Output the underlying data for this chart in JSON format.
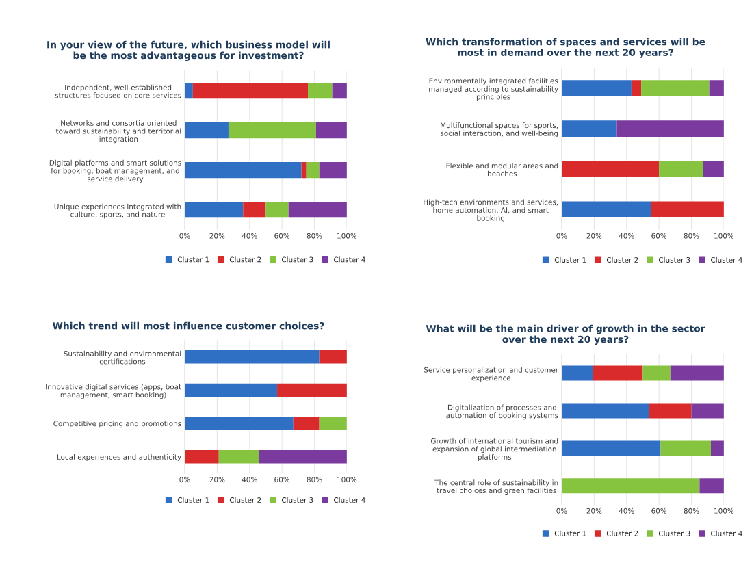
{
  "chart_data": [
    {
      "type": "bar",
      "orientation": "horizontal",
      "stacked": true,
      "title": "In your view of the future, which business model will\nbe the most advantageous for investment?",
      "categories": [
        "Independent, well-established\nstructures focused on core services",
        "Networks and consortia oriented\ntoward sustainability and territorial\nintegration",
        "Digital platforms and smart solutions\nfor booking, boat management, and\nservice delivery",
        "Unique experiences integrated with\nculture, sports, and nature"
      ],
      "series": [
        {
          "name": "Cluster 1",
          "color": "#2f6fc4",
          "values": [
            5,
            27,
            72,
            36
          ]
        },
        {
          "name": "Cluster 2",
          "color": "#d92b2b",
          "values": [
            71,
            0,
            3,
            14
          ]
        },
        {
          "name": "Cluster 3",
          "color": "#86c440",
          "values": [
            15,
            54,
            8,
            14
          ]
        },
        {
          "name": "Cluster 4",
          "color": "#7a3a9e",
          "values": [
            9,
            19,
            17,
            36
          ]
        }
      ],
      "xlim": [
        0,
        100
      ],
      "xticks": [
        {
          "value": 0,
          "label": "0%"
        },
        {
          "value": 20,
          "label": "20%"
        },
        {
          "value": 40,
          "label": "40%"
        },
        {
          "value": 60,
          "label": "60%"
        },
        {
          "value": 80,
          "label": "80%"
        },
        {
          "value": 100,
          "label": "100%"
        }
      ],
      "grid": "x",
      "legend": "bottom"
    },
    {
      "type": "bar",
      "orientation": "horizontal",
      "stacked": true,
      "title": "Which transformation of spaces and services will be\nmost in demand over the next 20 years?",
      "categories": [
        "Environmentally integrated facilities\nmanaged according to sustainability\nprinciples",
        "Multifunctional spaces for sports,\nsocial interaction, and well-being",
        "Flexible and modular areas and\nbeaches",
        "High-tech environments and services,\nhome automation, AI, and smart\nbooking"
      ],
      "series": [
        {
          "name": "Cluster 1",
          "color": "#2f6fc4",
          "values": [
            43,
            34,
            0,
            55
          ]
        },
        {
          "name": "Cluster 2",
          "color": "#d92b2b",
          "values": [
            6,
            0,
            60,
            45
          ]
        },
        {
          "name": "Cluster 3",
          "color": "#86c440",
          "values": [
            42,
            0,
            27,
            0
          ]
        },
        {
          "name": "Cluster 4",
          "color": "#7a3a9e",
          "values": [
            9,
            66,
            13,
            0
          ]
        }
      ],
      "xlim": [
        0,
        100
      ],
      "xticks": [
        {
          "value": 0,
          "label": "0%"
        },
        {
          "value": 20,
          "label": "20%"
        },
        {
          "value": 40,
          "label": "40%"
        },
        {
          "value": 60,
          "label": "60%"
        },
        {
          "value": 80,
          "label": "80%"
        },
        {
          "value": 100,
          "label": "100%"
        }
      ],
      "grid": "x",
      "legend": "bottom"
    },
    {
      "type": "bar",
      "orientation": "horizontal",
      "stacked": true,
      "title": "Which trend will most influence customer choices?",
      "categories": [
        "Sustainability and environmental\ncertifications",
        "Innovative digital services (apps, boat\nmanagement, smart booking)",
        "Competitive pricing and promotions",
        "Local experiences and authenticity"
      ],
      "series": [
        {
          "name": "Cluster 1",
          "color": "#2f6fc4",
          "values": [
            83,
            57,
            67,
            0
          ]
        },
        {
          "name": "Cluster 2",
          "color": "#d92b2b",
          "values": [
            17,
            43,
            16,
            21
          ]
        },
        {
          "name": "Cluster 3",
          "color": "#86c440",
          "values": [
            0,
            0,
            17,
            25
          ]
        },
        {
          "name": "Cluster 4",
          "color": "#7a3a9e",
          "values": [
            0,
            0,
            0,
            54
          ]
        }
      ],
      "xlim": [
        0,
        100
      ],
      "xticks": [
        {
          "value": 0,
          "label": "0%"
        },
        {
          "value": 20,
          "label": "20%"
        },
        {
          "value": 40,
          "label": "40%"
        },
        {
          "value": 60,
          "label": "60%"
        },
        {
          "value": 80,
          "label": "80%"
        },
        {
          "value": 100,
          "label": "100%"
        }
      ],
      "grid": "x",
      "legend": "bottom"
    },
    {
      "type": "bar",
      "orientation": "horizontal",
      "stacked": true,
      "title": "What will be the main driver of growth in the sector\nover the next 20 years?",
      "categories": [
        "Service personalization and customer\nexperience",
        "Digitalization of processes and\nautomation of booking systems",
        "Growth of international tourism and\nexpansion of global intermediation\nplatforms",
        "The central role of sustainability in\ntravel choices and green facilities"
      ],
      "series": [
        {
          "name": "Cluster 1",
          "color": "#2f6fc4",
          "values": [
            19,
            54,
            61,
            0
          ]
        },
        {
          "name": "Cluster 2",
          "color": "#d92b2b",
          "values": [
            31,
            26,
            0,
            0
          ]
        },
        {
          "name": "Cluster 3",
          "color": "#86c440",
          "values": [
            17,
            0,
            31,
            85
          ]
        },
        {
          "name": "Cluster 4",
          "color": "#7a3a9e",
          "values": [
            33,
            20,
            8,
            15
          ]
        }
      ],
      "xlim": [
        0,
        100
      ],
      "xticks": [
        {
          "value": 0,
          "label": "0%"
        },
        {
          "value": 20,
          "label": "20%"
        },
        {
          "value": 40,
          "label": "40%"
        },
        {
          "value": 60,
          "label": "60%"
        },
        {
          "value": 80,
          "label": "80%"
        },
        {
          "value": 100,
          "label": "100%"
        }
      ],
      "grid": "x",
      "legend": "bottom"
    }
  ]
}
